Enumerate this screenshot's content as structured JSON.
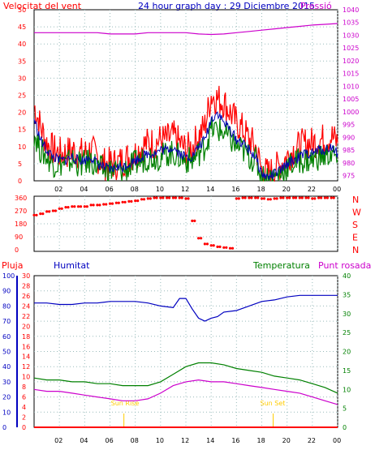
{
  "header": {
    "left_label": "Velocitat del vent",
    "center_label": "24 hour graph day : 29 Diciembre 2015",
    "right_label": "Pressió"
  },
  "lower_header": {
    "rain_label": "Pluja",
    "humidity_label": "Humitat",
    "temperature_label": "Temperatura",
    "dewpoint_label": "Punt rosada"
  },
  "colors": {
    "wind_gust": "#ff0000",
    "wind_avg_dark": "#0000b0",
    "wind_green": "#008000",
    "pressure": "#cc00cc",
    "direction": "#ff0000",
    "humidity": "#0000c0",
    "temperature": "#008000",
    "dewpoint": "#cc00cc",
    "rain": "#ff0000",
    "frame": "#000000",
    "grid": "#99bbbb",
    "sun_marker": "#ffcc00"
  },
  "chart_data": [
    {
      "type": "line",
      "name": "wind-and-pressure",
      "x_ticks": [
        "02",
        "04",
        "06",
        "08",
        "10",
        "12",
        "14",
        "16",
        "18",
        "20",
        "22",
        "00"
      ],
      "y_left_ticks": [
        0,
        5,
        10,
        15,
        20,
        25,
        30,
        35,
        40,
        45,
        50
      ],
      "y_left_range": [
        0,
        50
      ],
      "y_right_ticks": [
        975,
        980,
        985,
        990,
        995,
        1000,
        1005,
        1010,
        1015,
        1020,
        1025,
        1030,
        1035,
        1040
      ],
      "y_right_range": [
        973,
        1040
      ],
      "series": [
        {
          "name": "Velocitat del vent",
          "axis": "left",
          "hours": [
            0,
            0.5,
            1,
            1.5,
            2,
            2.5,
            3,
            3.5,
            4,
            4.5,
            5,
            5.5,
            6,
            6.5,
            7,
            7.5,
            8,
            8.5,
            9,
            9.5,
            10,
            10.5,
            11,
            11.5,
            12,
            12.5,
            13,
            13.5,
            14,
            14.5,
            15,
            15.5,
            16,
            16.5,
            17,
            17.5,
            18,
            18.5,
            19,
            19.5,
            20,
            20.5,
            21,
            21.5,
            22,
            22.5,
            23,
            23.5,
            24
          ],
          "values": [
            22,
            16,
            11,
            9,
            8,
            8,
            9,
            8,
            8,
            9,
            7,
            5,
            5,
            5,
            6,
            7,
            8,
            10,
            11,
            11,
            12,
            12,
            13,
            11,
            9,
            10,
            13,
            16,
            25,
            24,
            23,
            20,
            17,
            15,
            12,
            10,
            3,
            2,
            3,
            5,
            7,
            9,
            10,
            11,
            11,
            12,
            12,
            13,
            11
          ]
        },
        {
          "name": "",
          "axis": "left",
          "hours": [
            0,
            0.5,
            1,
            1.5,
            2,
            2.5,
            3,
            3.5,
            4,
            4.5,
            5,
            5.5,
            6,
            6.5,
            7,
            7.5,
            8,
            8.5,
            9,
            9.5,
            10,
            10.5,
            11,
            11.5,
            12,
            12.5,
            13,
            13.5,
            14,
            14.5,
            15,
            15.5,
            16,
            16.5,
            17,
            17.5,
            18,
            18.5,
            19,
            19.5,
            20,
            20.5,
            21,
            21.5,
            22,
            22.5,
            23,
            23.5,
            24
          ],
          "values": [
            18,
            12,
            9,
            7,
            6,
            6,
            7,
            6,
            6,
            7,
            5,
            4,
            3,
            4,
            4,
            5,
            6,
            7,
            8,
            8,
            9,
            9,
            10,
            8,
            7,
            7,
            10,
            12,
            18,
            20,
            17,
            15,
            12,
            11,
            9,
            7,
            2,
            1,
            2,
            3,
            5,
            6,
            7,
            8,
            8,
            9,
            9,
            10,
            8
          ]
        },
        {
          "name": "",
          "axis": "left",
          "hours": [
            0,
            0.5,
            1,
            1.5,
            2,
            2.5,
            3,
            3.5,
            4,
            4.5,
            5,
            5.5,
            6,
            6.5,
            7,
            7.5,
            8,
            8.5,
            9,
            9.5,
            10,
            10.5,
            11,
            11.5,
            12,
            12.5,
            13,
            13.5,
            14,
            14.5,
            15,
            15.5,
            16,
            16.5,
            17,
            17.5,
            18,
            18.5,
            19,
            19.5,
            20,
            20.5,
            21,
            21.5,
            22,
            22.5,
            23,
            23.5,
            24
          ],
          "values": [
            14,
            9,
            7,
            5,
            5,
            5,
            6,
            5,
            5,
            6,
            4,
            3,
            3,
            3,
            3,
            4,
            5,
            6,
            7,
            7,
            7,
            8,
            8,
            7,
            6,
            6,
            8,
            10,
            15,
            15,
            14,
            12,
            10,
            9,
            7,
            6,
            1,
            1,
            1,
            2,
            4,
            5,
            6,
            6,
            6,
            7,
            7,
            8,
            6
          ]
        },
        {
          "name": "Pressió",
          "axis": "right",
          "hours": [
            0,
            1,
            2,
            3,
            4,
            5,
            6,
            7,
            8,
            9,
            10,
            11,
            12,
            13,
            14,
            15,
            16,
            17,
            18,
            19,
            20,
            21,
            22,
            23,
            24
          ],
          "values": [
            1031,
            1031,
            1031,
            1031,
            1031,
            1031,
            1030.5,
            1030.5,
            1030.5,
            1031,
            1031,
            1031,
            1031,
            1030.5,
            1030.3,
            1030.5,
            1031,
            1031.5,
            1032,
            1032.5,
            1033,
            1033.5,
            1034,
            1034.3,
            1034.6
          ]
        }
      ]
    },
    {
      "type": "scatter",
      "name": "wind-direction",
      "x_ticks": [
        "02",
        "04",
        "06",
        "08",
        "10",
        "12",
        "14",
        "16",
        "18",
        "20",
        "22",
        "00"
      ],
      "y_ticks": [
        0,
        90,
        180,
        270,
        360
      ],
      "y_range": [
        0,
        360
      ],
      "compass_labels": [
        "N",
        "W",
        "S",
        "E",
        "N"
      ],
      "hours": [
        0,
        0.5,
        1,
        1.5,
        2,
        2.5,
        3,
        3.5,
        4,
        4.5,
        5,
        5.5,
        6,
        6.5,
        7,
        7.5,
        8,
        8.5,
        9,
        9.5,
        10,
        10.5,
        11,
        11.5,
        12,
        12.5,
        13,
        13.5,
        14,
        14.5,
        15,
        15.5,
        16,
        16.5,
        17,
        17.5,
        18,
        18.5,
        19,
        19.5,
        20,
        20.5,
        21,
        21.5,
        22,
        22.5,
        23,
        23.5
      ],
      "values": [
        240,
        250,
        265,
        270,
        285,
        295,
        300,
        300,
        300,
        310,
        310,
        315,
        320,
        325,
        330,
        335,
        340,
        350,
        355,
        360,
        360,
        360,
        360,
        360,
        355,
        200,
        80,
        40,
        30,
        20,
        15,
        10,
        355,
        360,
        360,
        360,
        355,
        350,
        355,
        360,
        360,
        360,
        360,
        360,
        355,
        360,
        360,
        360
      ]
    },
    {
      "type": "line",
      "name": "humidity-temperature",
      "x_ticks": [
        "02",
        "04",
        "06",
        "08",
        "10",
        "12",
        "14",
        "16",
        "18",
        "20",
        "22",
        "00"
      ],
      "y_rain_ticks": [
        0,
        2,
        4,
        6,
        8,
        10,
        12,
        14,
        16,
        18,
        20,
        22,
        24,
        26,
        28,
        30
      ],
      "y_humidity_ticks": [
        0,
        10,
        20,
        30,
        40,
        50,
        60,
        70,
        80,
        90,
        100
      ],
      "y_temp_ticks": [
        0,
        5,
        10,
        15,
        20,
        25,
        30,
        35,
        40
      ],
      "events": [
        {
          "label": "Sun Rise",
          "hour": 7.1
        },
        {
          "label": "Sun Set",
          "hour": 18.9
        }
      ],
      "series": [
        {
          "name": "Humitat",
          "axis": "humidity",
          "hours": [
            0,
            1,
            2,
            3,
            4,
            5,
            6,
            7,
            8,
            9,
            10,
            11,
            11.5,
            12,
            12.5,
            13,
            13.5,
            14,
            14.5,
            15,
            16,
            17,
            18,
            19,
            20,
            21,
            22,
            23,
            24
          ],
          "values": [
            82,
            82,
            81,
            81,
            82,
            82,
            83,
            83,
            83,
            82,
            80,
            79,
            85,
            85,
            78,
            72,
            70,
            72,
            73,
            76,
            77,
            80,
            83,
            84,
            86,
            87,
            87,
            87,
            87
          ]
        },
        {
          "name": "Temperatura",
          "axis": "temp",
          "hours": [
            0,
            1,
            2,
            3,
            4,
            5,
            6,
            7,
            8,
            9,
            10,
            11,
            12,
            13,
            14,
            15,
            16,
            17,
            18,
            19,
            20,
            21,
            22,
            23,
            24
          ],
          "values": [
            13,
            12.5,
            12.5,
            12,
            12,
            11.5,
            11.5,
            11,
            11,
            11,
            12,
            14,
            16,
            17,
            17,
            16.5,
            15.5,
            15,
            14.5,
            13.5,
            13,
            12.5,
            11.5,
            10.5,
            9
          ]
        },
        {
          "name": "Punt rosada",
          "axis": "temp",
          "hours": [
            0,
            1,
            2,
            3,
            4,
            5,
            6,
            7,
            8,
            9,
            10,
            11,
            12,
            13,
            14,
            15,
            16,
            17,
            18,
            19,
            20,
            21,
            22,
            23,
            24
          ],
          "values": [
            10,
            9.5,
            9.5,
            9,
            8.5,
            8,
            7.5,
            7,
            7,
            7.5,
            9,
            11,
            12,
            12.5,
            12,
            12,
            11.5,
            11,
            10.5,
            10,
            9.5,
            9,
            8,
            7,
            6
          ]
        },
        {
          "name": "Pluja",
          "axis": "rain",
          "hours": [
            0,
            24
          ],
          "values": [
            0,
            0
          ]
        }
      ]
    }
  ]
}
